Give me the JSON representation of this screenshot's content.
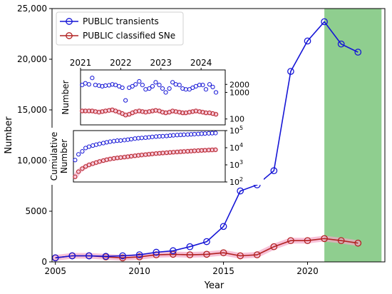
{
  "chart_data": [
    {
      "type": "line",
      "xlabel": "Year",
      "ylabel": "Number",
      "xlim": [
        2004.8,
        2024.6
      ],
      "ylim": [
        0,
        25000
      ],
      "xticks": [
        2005,
        2010,
        2015,
        2020
      ],
      "xtick_labels": [
        "2005",
        "2010",
        "2015",
        "2020"
      ],
      "yticks": [
        0,
        5000,
        10000,
        15000,
        20000,
        25000
      ],
      "ytick_labels": [
        "0",
        "5000",
        "10,000",
        "15,000",
        "20,000",
        "25,000"
      ],
      "shaded_region": {
        "x0": 2021,
        "x1": 2024.4,
        "color": "#8fce8f"
      },
      "legend": {
        "placement": "top-left",
        "entries": [
          "PUBLIC transients",
          "PUBLIC classified SNe"
        ]
      },
      "series": [
        {
          "name": "PUBLIC transients",
          "color": "#1515d6",
          "x": [
            2005,
            2006,
            2007,
            2008,
            2009,
            2010,
            2011,
            2012,
            2013,
            2014,
            2015,
            2016,
            2017,
            2018,
            2019,
            2020,
            2021,
            2022,
            2023
          ],
          "y": [
            400,
            600,
            600,
            550,
            600,
            700,
            950,
            1100,
            1500,
            2000,
            3500,
            7000,
            7600,
            9000,
            18800,
            21800,
            23700,
            21500,
            20700
          ]
        },
        {
          "name": "PUBLIC classified SNe",
          "color": "#b22222",
          "x": [
            2005,
            2006,
            2007,
            2008,
            2009,
            2010,
            2011,
            2012,
            2013,
            2014,
            2015,
            2016,
            2017,
            2018,
            2019,
            2020,
            2021,
            2022,
            2023
          ],
          "y": [
            400,
            600,
            600,
            500,
            400,
            500,
            700,
            750,
            700,
            750,
            900,
            600,
            700,
            1500,
            2100,
            2100,
            2300,
            2100,
            1850
          ]
        }
      ]
    },
    {
      "type": "scatter",
      "ylabel": "Number",
      "scale": "log",
      "ylim": [
        60,
        7000
      ],
      "xlim": [
        2021.0,
        2024.6
      ],
      "xticks": [
        2021,
        2022,
        2023,
        2024
      ],
      "xtick_labels": [
        "2021",
        "2022",
        "2023",
        "2024"
      ],
      "yticks": [
        100,
        1000,
        2000
      ],
      "ytick_labels": [
        "100",
        "1000",
        "2000"
      ],
      "series": [
        {
          "name": "PUBLIC transients",
          "color": "#1515d6",
          "x": [
            2021.04,
            2021.12,
            2021.21,
            2021.29,
            2021.37,
            2021.46,
            2021.54,
            2021.62,
            2021.71,
            2021.79,
            2021.87,
            2021.96,
            2022.04,
            2022.12,
            2022.21,
            2022.29,
            2022.37,
            2022.46,
            2022.54,
            2022.62,
            2022.71,
            2022.79,
            2022.87,
            2022.96,
            2023.04,
            2023.12,
            2023.21,
            2023.29,
            2023.37,
            2023.46,
            2023.54,
            2023.62,
            2023.71,
            2023.79,
            2023.87,
            2023.96,
            2024.04,
            2024.12,
            2024.21,
            2024.29,
            2024.37
          ],
          "y": [
            1900,
            2200,
            2000,
            3500,
            1900,
            1800,
            1700,
            1800,
            1850,
            2000,
            1900,
            1700,
            1500,
            500,
            1500,
            1700,
            2000,
            2600,
            1900,
            1300,
            1400,
            1700,
            2400,
            1900,
            1400,
            1000,
            1400,
            2400,
            2000,
            1900,
            1400,
            1300,
            1300,
            1500,
            1700,
            1900,
            1900,
            1300,
            2000,
            1600,
            1000
          ]
        },
        {
          "name": "PUBLIC classified SNe",
          "color": "#b22222",
          "x": [
            2021.04,
            2021.12,
            2021.21,
            2021.29,
            2021.37,
            2021.46,
            2021.54,
            2021.62,
            2021.71,
            2021.79,
            2021.87,
            2021.96,
            2022.04,
            2022.12,
            2022.21,
            2022.29,
            2022.37,
            2022.46,
            2022.54,
            2022.62,
            2022.71,
            2022.79,
            2022.87,
            2022.96,
            2023.04,
            2023.12,
            2023.21,
            2023.29,
            2023.37,
            2023.46,
            2023.54,
            2023.62,
            2023.71,
            2023.79,
            2023.87,
            2023.96,
            2024.04,
            2024.12,
            2024.21,
            2024.29,
            2024.37
          ],
          "y": [
            200,
            200,
            200,
            200,
            190,
            180,
            190,
            200,
            210,
            220,
            200,
            180,
            160,
            140,
            150,
            170,
            190,
            200,
            190,
            180,
            190,
            200,
            210,
            200,
            180,
            170,
            180,
            200,
            190,
            180,
            170,
            170,
            180,
            190,
            200,
            190,
            180,
            170,
            170,
            160,
            150
          ]
        }
      ]
    },
    {
      "type": "scatter",
      "ylabel": "Cumulative Number",
      "scale": "log",
      "ylim": [
        100,
        100000
      ],
      "xlim": [
        2021.0,
        2024.6
      ],
      "yticks": [
        100,
        1000,
        10000,
        100000
      ],
      "ytick_labels": [
        "10",
        "10",
        "10",
        "10"
      ],
      "ytick_exponents": [
        "2",
        "3",
        "4",
        "5"
      ],
      "series": [
        {
          "name": "PUBLIC transients",
          "color": "#1515d6",
          "x": [
            2021.04,
            2021.12,
            2021.21,
            2021.29,
            2021.37,
            2021.46,
            2021.54,
            2021.62,
            2021.71,
            2021.79,
            2021.87,
            2021.96,
            2022.04,
            2022.12,
            2022.21,
            2022.29,
            2022.37,
            2022.46,
            2022.54,
            2022.62,
            2022.71,
            2022.79,
            2022.87,
            2022.96,
            2023.04,
            2023.12,
            2023.21,
            2023.29,
            2023.37,
            2023.46,
            2023.54,
            2023.62,
            2023.71,
            2023.79,
            2023.87,
            2023.96,
            2024.04,
            2024.12,
            2024.21,
            2024.29,
            2024.37
          ],
          "y": [
            1900,
            4100,
            6100,
            9600,
            11500,
            13300,
            15000,
            16800,
            18650,
            20650,
            22550,
            24250,
            25750,
            26250,
            27750,
            29450,
            31450,
            34050,
            35950,
            37250,
            38650,
            40350,
            42750,
            44650,
            46050,
            47050,
            48450,
            50850,
            52850,
            54750,
            56150,
            57450,
            58750,
            60250,
            61950,
            63850,
            65750,
            67050,
            69050,
            70650,
            71650
          ]
        },
        {
          "name": "PUBLIC classified SNe",
          "color": "#b22222",
          "x": [
            2021.04,
            2021.12,
            2021.21,
            2021.29,
            2021.37,
            2021.46,
            2021.54,
            2021.62,
            2021.71,
            2021.79,
            2021.87,
            2021.96,
            2022.04,
            2022.12,
            2022.21,
            2022.29,
            2022.37,
            2022.46,
            2022.54,
            2022.62,
            2022.71,
            2022.79,
            2022.87,
            2022.96,
            2023.04,
            2023.12,
            2023.21,
            2023.29,
            2023.37,
            2023.46,
            2023.54,
            2023.62,
            2023.71,
            2023.79,
            2023.87,
            2023.96,
            2024.04,
            2024.12,
            2024.21,
            2024.29,
            2024.37
          ],
          "y": [
            200,
            400,
            600,
            800,
            990,
            1170,
            1360,
            1560,
            1770,
            1990,
            2190,
            2370,
            2530,
            2670,
            2820,
            2990,
            3180,
            3380,
            3570,
            3750,
            3940,
            4140,
            4350,
            4550,
            4730,
            4900,
            5080,
            5280,
            5470,
            5650,
            5820,
            5990,
            6170,
            6360,
            6560,
            6750,
            6930,
            7100,
            7270,
            7430,
            7580
          ]
        }
      ]
    }
  ]
}
